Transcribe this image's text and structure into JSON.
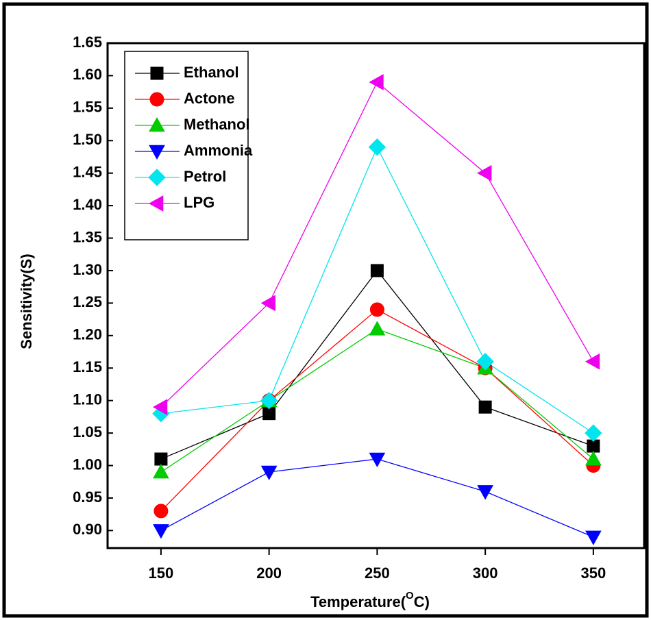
{
  "chart_data": {
    "type": "line",
    "x_label": [
      "Temperature(",
      "O",
      "C)"
    ],
    "y_label": "Sensitivity(S)",
    "x": [
      150,
      200,
      250,
      300,
      350
    ],
    "series": [
      {
        "name": "Ethanol",
        "color": "#000000",
        "marker": "square",
        "values": [
          1.01,
          1.08,
          1.3,
          1.09,
          1.03
        ]
      },
      {
        "name": "Actone",
        "color": "#ff0000",
        "marker": "circle",
        "values": [
          0.93,
          1.1,
          1.24,
          1.15,
          1.0
        ]
      },
      {
        "name": "Methanol",
        "color": "#00cc00",
        "marker": "triangle-up",
        "values": [
          0.99,
          1.1,
          1.21,
          1.15,
          1.01
        ]
      },
      {
        "name": "Ammonia",
        "color": "#0000ff",
        "marker": "triangle-down",
        "values": [
          0.9,
          0.99,
          1.01,
          0.96,
          0.89
        ]
      },
      {
        "name": "Petrol",
        "color": "#00e5ee",
        "marker": "diamond",
        "values": [
          1.08,
          1.1,
          1.49,
          1.16,
          1.05
        ]
      },
      {
        "name": "LPG",
        "color": "#ee00ee",
        "marker": "triangle-left",
        "values": [
          1.09,
          1.25,
          1.59,
          1.45,
          1.16
        ]
      }
    ],
    "xlim": [
      125.3,
      373.5
    ],
    "xticks": [
      150,
      200,
      250,
      300,
      350
    ],
    "ylim": [
      0.873,
      1.65
    ],
    "yticks": [
      {
        "value": 0.9,
        "label": "0.90"
      },
      0.95,
      {
        "value": 1.0,
        "label": "1.00"
      },
      1.05,
      {
        "value": 1.1,
        "label": "1.10"
      },
      1.15,
      {
        "value": 1.2,
        "label": "1.20"
      },
      1.25,
      {
        "value": 1.3,
        "label": "1.30"
      },
      1.35,
      {
        "value": 1.4,
        "label": "1.40"
      },
      1.45,
      {
        "value": 1.5,
        "label": "1.50"
      },
      1.55,
      {
        "value": 1.6,
        "label": "1.60"
      },
      1.65
    ],
    "legend": "upper left"
  }
}
